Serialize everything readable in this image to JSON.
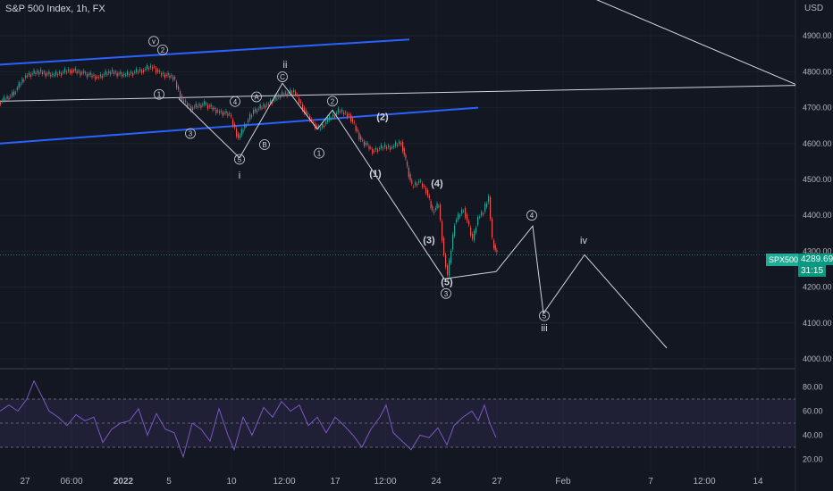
{
  "header": {
    "title": "S&P 500 Index, 1h, FX",
    "currency": "USD"
  },
  "price_tag": {
    "symbol": "SPX500",
    "last": "4289.69",
    "countdown": "31:15"
  },
  "colors": {
    "background": "#131722",
    "channel": "#2962ff",
    "up": "#26a69a",
    "down": "#ef5350",
    "rsi": "#7e57c2",
    "rsi_band": "#7e57c2",
    "wave_lines": "#d1d4dc",
    "price_tag": "#089981"
  },
  "chart_data": [
    {
      "type": "line",
      "name": "price",
      "x_ticks": [
        "27",
        "06:00",
        "2022",
        "5",
        "10",
        "12:00",
        "17",
        "12:00",
        "24",
        "27",
        "Feb",
        "7",
        "12:00",
        "14"
      ],
      "y_ticks": [
        4000,
        4100,
        4200,
        4300,
        4400,
        4500,
        4600,
        4700,
        4800,
        4900
      ],
      "y_tick_labels": [
        "4000.00",
        "4100.00",
        "4200.00",
        "4300.00",
        "4400.00",
        "4500.00",
        "4600.00",
        "4700.00",
        "4800.00",
        "4900.00"
      ],
      "ylim": [
        3975,
        5000
      ],
      "grid": true,
      "series": [
        {
          "values": [
            [
              0,
              4715
            ],
            [
              15,
              4735
            ],
            [
              30,
              4790
            ],
            [
              45,
              4800
            ],
            [
              60,
              4790
            ],
            [
              80,
              4805
            ],
            [
              95,
              4795
            ],
            [
              110,
              4785
            ],
            [
              125,
              4800
            ],
            [
              140,
              4790
            ],
            [
              160,
              4805
            ],
            [
              172,
              4815
            ],
            [
              180,
              4795
            ],
            [
              195,
              4785
            ],
            [
              205,
              4720
            ],
            [
              215,
              4700
            ],
            [
              230,
              4710
            ],
            [
              245,
              4690
            ],
            [
              258,
              4680
            ],
            [
              268,
              4615
            ],
            [
              275,
              4650
            ],
            [
              285,
              4690
            ],
            [
              300,
              4710
            ],
            [
              315,
              4735
            ],
            [
              330,
              4745
            ],
            [
              340,
              4700
            ],
            [
              350,
              4660
            ],
            [
              358,
              4640
            ],
            [
              368,
              4665
            ],
            [
              380,
              4690
            ],
            [
              392,
              4680
            ],
            [
              405,
              4610
            ],
            [
              418,
              4580
            ],
            [
              430,
              4590
            ],
            [
              440,
              4590
            ],
            [
              450,
              4605
            ],
            [
              455,
              4550
            ],
            [
              462,
              4480
            ],
            [
              470,
              4495
            ],
            [
              478,
              4470
            ],
            [
              485,
              4410
            ],
            [
              492,
              4430
            ],
            [
              498,
              4290
            ],
            [
              502,
              4230
            ],
            [
              510,
              4380
            ],
            [
              520,
              4420
            ],
            [
              530,
              4330
            ],
            [
              536,
              4395
            ],
            [
              542,
              4410
            ],
            [
              548,
              4450
            ],
            [
              552,
              4330
            ],
            [
              557,
              4290
            ]
          ]
        }
      ],
      "channel_lines": [
        [
          [
            0,
            4820
          ],
          [
            458,
            4890
          ]
        ],
        [
          [
            0,
            4600
          ],
          [
            535,
            4700
          ]
        ],
        [
          [
            0,
            4718
          ],
          [
            890,
            4762
          ]
        ],
        [
          [
            640,
            5030
          ],
          [
            890,
            4765
          ]
        ]
      ],
      "wave_path_1": [
        [
          200,
          4725
        ],
        [
          268,
          4560
        ],
        [
          316,
          4768
        ],
        [
          355,
          4640
        ],
        [
          372,
          4693
        ],
        [
          497,
          4223
        ],
        [
          555,
          4243
        ]
      ],
      "wave_path_2": [
        [
          555,
          4243
        ],
        [
          596,
          4370
        ],
        [
          608,
          4127
        ],
        [
          654,
          4290
        ],
        [
          746,
          4030
        ]
      ],
      "labels": [
        {
          "text": "v",
          "circled": true,
          "x": 172,
          "y": 4885
        },
        {
          "text": "2",
          "circled": true,
          "x": 182,
          "y": 4861
        },
        {
          "text": "1",
          "circled": true,
          "x": 178,
          "y": 4737
        },
        {
          "text": "3",
          "circled": true,
          "x": 213,
          "y": 4628
        },
        {
          "text": "4",
          "circled": true,
          "x": 263,
          "y": 4717
        },
        {
          "text": "5",
          "circled": true,
          "x": 268,
          "y": 4556
        },
        {
          "text": "i",
          "circled": false,
          "x": 268,
          "y": 4510
        },
        {
          "text": "A",
          "circled": true,
          "x": 287,
          "y": 4730
        },
        {
          "text": "B",
          "circled": true,
          "x": 296,
          "y": 4597
        },
        {
          "text": "ii",
          "circled": false,
          "x": 319,
          "y": 4818
        },
        {
          "text": "C",
          "circled": true,
          "x": 316,
          "y": 4786
        },
        {
          "text": "2",
          "circled": true,
          "x": 372,
          "y": 4718
        },
        {
          "text": "1",
          "circled": true,
          "x": 357,
          "y": 4573
        },
        {
          "text": "(2)",
          "circled": false,
          "x": 428,
          "y": 4673
        },
        {
          "text": "(1)",
          "circled": false,
          "x": 420,
          "y": 4515
        },
        {
          "text": "(4)",
          "circled": false,
          "x": 489,
          "y": 4487
        },
        {
          "text": "(3)",
          "circled": false,
          "x": 480,
          "y": 4330
        },
        {
          "text": "(5)",
          "circled": false,
          "x": 500,
          "y": 4212
        },
        {
          "text": "3",
          "circled": true,
          "x": 499,
          "y": 4182
        },
        {
          "text": "4",
          "circled": true,
          "x": 595,
          "y": 4400
        },
        {
          "text": "5",
          "circled": true,
          "x": 609,
          "y": 4120
        },
        {
          "text": "iii",
          "circled": false,
          "x": 609,
          "y": 4085
        },
        {
          "text": "iv",
          "circled": false,
          "x": 653,
          "y": 4328
        }
      ]
    },
    {
      "type": "line",
      "name": "RSI",
      "y_ticks": [
        20,
        40,
        60,
        80
      ],
      "y_tick_labels": [
        "20.00",
        "40.00",
        "60.00",
        "80.00"
      ],
      "ylim": [
        10,
        90
      ],
      "band": [
        30,
        70
      ],
      "mid": 50,
      "values": [
        [
          0,
          60
        ],
        [
          10,
          65
        ],
        [
          20,
          60
        ],
        [
          30,
          70
        ],
        [
          38,
          85
        ],
        [
          45,
          75
        ],
        [
          55,
          60
        ],
        [
          65,
          55
        ],
        [
          75,
          48
        ],
        [
          85,
          57
        ],
        [
          95,
          52
        ],
        [
          105,
          55
        ],
        [
          115,
          34
        ],
        [
          125,
          45
        ],
        [
          135,
          50
        ],
        [
          145,
          52
        ],
        [
          155,
          62
        ],
        [
          165,
          40
        ],
        [
          175,
          58
        ],
        [
          185,
          45
        ],
        [
          195,
          42
        ],
        [
          205,
          22
        ],
        [
          215,
          50
        ],
        [
          225,
          45
        ],
        [
          235,
          35
        ],
        [
          245,
          62
        ],
        [
          255,
          40
        ],
        [
          262,
          28
        ],
        [
          272,
          55
        ],
        [
          282,
          40
        ],
        [
          295,
          63
        ],
        [
          305,
          55
        ],
        [
          315,
          68
        ],
        [
          325,
          60
        ],
        [
          335,
          65
        ],
        [
          345,
          48
        ],
        [
          355,
          55
        ],
        [
          365,
          42
        ],
        [
          375,
          55
        ],
        [
          385,
          48
        ],
        [
          395,
          40
        ],
        [
          405,
          30
        ],
        [
          415,
          45
        ],
        [
          425,
          55
        ],
        [
          432,
          65
        ],
        [
          440,
          42
        ],
        [
          450,
          35
        ],
        [
          460,
          28
        ],
        [
          470,
          40
        ],
        [
          480,
          38
        ],
        [
          490,
          46
        ],
        [
          500,
          32
        ],
        [
          508,
          48
        ],
        [
          518,
          55
        ],
        [
          528,
          60
        ],
        [
          535,
          52
        ],
        [
          542,
          65
        ],
        [
          548,
          50
        ],
        [
          555,
          38
        ]
      ]
    }
  ]
}
